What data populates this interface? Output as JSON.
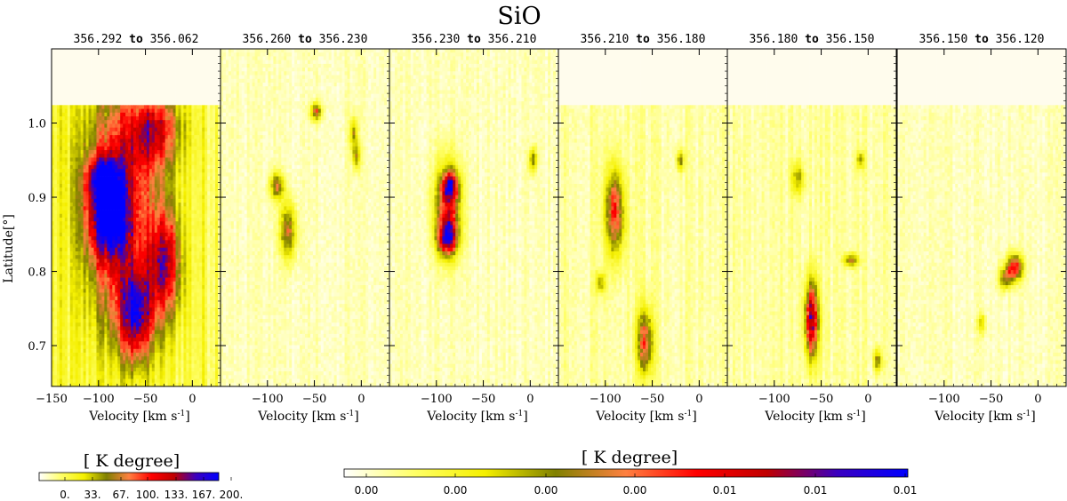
{
  "chart_data": {
    "type": "heatmap",
    "title": "SiO",
    "ylabel": "Latitude[°]",
    "xlabel_prefix": "Velocity [km s",
    "xlabel_sup": "-1",
    "xlabel_suffix": "]",
    "xlim": [
      -150,
      30
    ],
    "ylim": [
      0.645,
      1.1
    ],
    "yticks": [
      0.7,
      0.8,
      0.9,
      1.0
    ],
    "ytick_labels": [
      "0.7",
      "0.8",
      "0.9",
      "1.0"
    ],
    "xticks": [
      -150,
      -100,
      -50,
      0
    ],
    "xtick_labels": [
      "−150",
      "−100",
      "−50",
      "0"
    ],
    "panels": [
      {
        "lon_from": "356.292",
        "to_word": "to",
        "lon_to": "356.062",
        "coverage_top": 1.025,
        "features": [
          {
            "v": -90,
            "b": 0.875,
            "sv": 16,
            "sb": 0.04,
            "amp": 0.9
          },
          {
            "v": -95,
            "b": 0.925,
            "sv": 12,
            "sb": 0.02,
            "amp": 0.7
          },
          {
            "v": -60,
            "b": 0.74,
            "sv": 12,
            "sb": 0.04,
            "amp": 0.85
          },
          {
            "v": -30,
            "b": 0.81,
            "sv": 12,
            "sb": 0.05,
            "amp": 0.75
          },
          {
            "v": -70,
            "b": 0.97,
            "sv": 30,
            "sb": 0.06,
            "amp": 0.5
          },
          {
            "v": -40,
            "b": 0.99,
            "sv": 18,
            "sb": 0.03,
            "amp": 0.5
          },
          {
            "v": -75,
            "b": 0.82,
            "sv": 25,
            "sb": 0.08,
            "amp": 0.55
          }
        ],
        "base": 0.22
      },
      {
        "lon_from": "356.260",
        "to_word": "to",
        "lon_to": "356.230",
        "coverage_top": 1.1,
        "features": [
          {
            "v": -90,
            "b": 0.915,
            "sv": 5,
            "sb": 0.012,
            "amp": 0.55
          },
          {
            "v": -78,
            "b": 0.855,
            "sv": 6,
            "sb": 0.025,
            "amp": 0.55
          },
          {
            "v": -48,
            "b": 1.015,
            "sv": 4,
            "sb": 0.008,
            "amp": 0.6
          },
          {
            "v": -8,
            "b": 0.985,
            "sv": 3,
            "sb": 0.015,
            "amp": 0.4
          },
          {
            "v": -5,
            "b": 0.955,
            "sv": 3,
            "sb": 0.012,
            "amp": 0.4
          }
        ],
        "base": 0.05
      },
      {
        "lon_from": "356.230",
        "to_word": "to",
        "lon_to": "356.210",
        "coverage_top": 1.1,
        "features": [
          {
            "v": -88,
            "b": 0.885,
            "sv": 9,
            "sb": 0.04,
            "amp": 0.8
          },
          {
            "v": -88,
            "b": 0.845,
            "sv": 7,
            "sb": 0.015,
            "amp": 0.85
          },
          {
            "v": -85,
            "b": 0.915,
            "sv": 6,
            "sb": 0.012,
            "amp": 0.75
          },
          {
            "v": 3,
            "b": 0.95,
            "sv": 3,
            "sb": 0.012,
            "amp": 0.45
          }
        ],
        "base": 0.05
      },
      {
        "lon_from": "356.210",
        "to_word": "to",
        "lon_to": "356.180",
        "coverage_top": 1.025,
        "features": [
          {
            "v": -90,
            "b": 0.88,
            "sv": 7,
            "sb": 0.04,
            "amp": 0.7
          },
          {
            "v": -58,
            "b": 0.705,
            "sv": 6,
            "sb": 0.03,
            "amp": 0.65
          },
          {
            "v": -20,
            "b": 0.95,
            "sv": 3,
            "sb": 0.01,
            "amp": 0.4
          },
          {
            "v": -105,
            "b": 0.785,
            "sv": 4,
            "sb": 0.01,
            "amp": 0.35
          }
        ],
        "base": 0.08
      },
      {
        "lon_from": "356.180",
        "to_word": "to",
        "lon_to": "356.150",
        "coverage_top": 1.025,
        "features": [
          {
            "v": -60,
            "b": 0.735,
            "sv": 5,
            "sb": 0.035,
            "amp": 1.0
          },
          {
            "v": -18,
            "b": 0.815,
            "sv": 5,
            "sb": 0.006,
            "amp": 0.5
          },
          {
            "v": -75,
            "b": 0.925,
            "sv": 5,
            "sb": 0.015,
            "amp": 0.35
          },
          {
            "v": -8,
            "b": 0.95,
            "sv": 3,
            "sb": 0.008,
            "amp": 0.35
          },
          {
            "v": 10,
            "b": 0.68,
            "sv": 3,
            "sb": 0.01,
            "amp": 0.45
          }
        ],
        "base": 0.08
      },
      {
        "lon_from": "356.150",
        "to_word": "to",
        "lon_to": "356.120",
        "coverage_top": 1.025,
        "features": [
          {
            "v": -25,
            "b": 0.805,
            "sv": 6,
            "sb": 0.012,
            "amp": 0.8
          },
          {
            "v": -35,
            "b": 0.79,
            "sv": 5,
            "sb": 0.01,
            "amp": 0.45
          },
          {
            "v": -60,
            "b": 0.73,
            "sv": 3,
            "sb": 0.01,
            "amp": 0.3
          }
        ],
        "base": 0.05
      }
    ],
    "colorbar_left": {
      "label": "[ K degree]",
      "ticks": [
        "0.",
        "33.",
        "67.",
        "100.",
        "133.",
        "167.",
        "200."
      ],
      "range": [
        0,
        200
      ]
    },
    "colorbar_right": {
      "label": "[ K degree]",
      "ticks": [
        "0.00",
        "0.00",
        "0.00",
        "0.00",
        "0.01",
        "0.01",
        "0.01"
      ]
    },
    "colors": {
      "nodata": "#fffced",
      "stops": [
        "#ffffff",
        "#ffff66",
        "#f5f000",
        "#808000",
        "#ff8040",
        "#ff0000",
        "#c00000",
        "#3a00c0",
        "#0000ff"
      ]
    }
  }
}
